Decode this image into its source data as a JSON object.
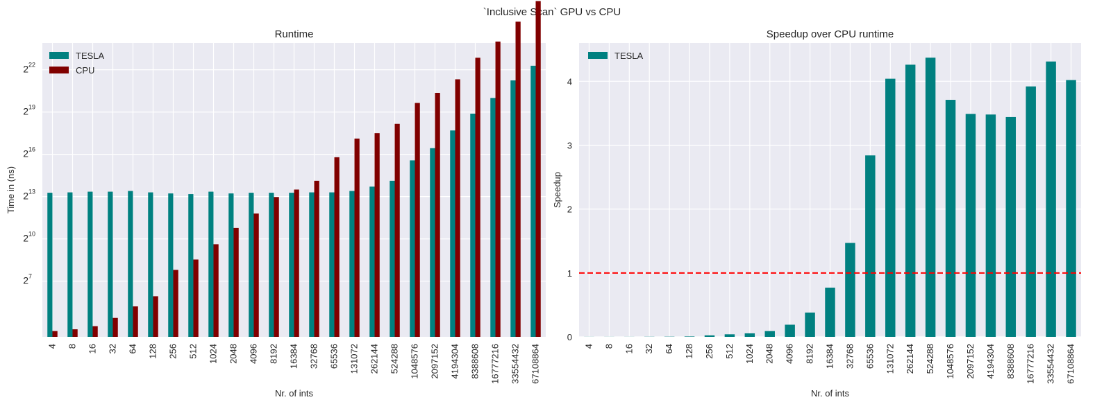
{
  "figure": {
    "suptitle": "`Inclusive Scan` GPU vs CPU"
  },
  "colors": {
    "tesla": "#008080",
    "cpu": "#800000",
    "plot_bg": "#eaeaf2",
    "grid": "#ffffff",
    "ref_line": "#ff0000",
    "text": "#262626"
  },
  "chart_data": [
    {
      "type": "bar",
      "title": "Runtime",
      "xlabel": "Nr. of ints",
      "ylabel": "Time in (ns)",
      "yscale": "log2",
      "ylim_log2": [
        3.05,
        23.9
      ],
      "yticks_exp": [
        7,
        10,
        13,
        16,
        19,
        22
      ],
      "yticks_base": "2",
      "grid": true,
      "legend": "top-left",
      "categories": [
        "4",
        "8",
        "16",
        "32",
        "64",
        "128",
        "256",
        "512",
        "1024",
        "2048",
        "4096",
        "8192",
        "16384",
        "32768",
        "65536",
        "131072",
        "262144",
        "524288",
        "1048576",
        "2097152",
        "4194304",
        "8388608",
        "16777216",
        "33554432",
        "67108864"
      ],
      "series": [
        {
          "name": "TESLA",
          "color": "#008080",
          "values": [
            9902,
            10086,
            10433,
            10433,
            10806,
            10086,
            9575,
            9259,
            10433,
            9575,
            9902,
            9902,
            9902,
            10086,
            10086,
            10806,
            13377,
            17820,
            48664,
            88650,
            211928,
            484058,
            1048576,
            2484668,
            5108800
          ]
        },
        {
          "name": "CPU",
          "color": "#800000",
          "values": [
            11,
            12,
            14,
            21,
            37,
            61,
            223,
            371,
            787,
            1753,
            3564,
            8026,
            11585,
            17820,
            56752,
            142211,
            185363,
            292864,
            819200,
            1345487,
            2621440,
            7568000,
            16777216,
            44620000,
            122880000
          ]
        }
      ]
    },
    {
      "type": "bar",
      "title": "Speedup over CPU runtime",
      "xlabel": "Nr. of ints",
      "ylabel": "Speedup",
      "ylim": [
        0,
        4.6
      ],
      "yticks": [
        0,
        1,
        2,
        3,
        4
      ],
      "grid": true,
      "legend": "top-left",
      "reference_line": {
        "y": 1,
        "style": "dashed",
        "color": "#ff0000"
      },
      "categories": [
        "4",
        "8",
        "16",
        "32",
        "64",
        "128",
        "256",
        "512",
        "1024",
        "2048",
        "4096",
        "8192",
        "16384",
        "32768",
        "65536",
        "131072",
        "262144",
        "524288",
        "1048576",
        "2097152",
        "4194304",
        "8388608",
        "16777216",
        "33554432",
        "67108864"
      ],
      "series": [
        {
          "name": "TESLA",
          "color": "#008080",
          "values": [
            0.001,
            0.001,
            0.001,
            0.002,
            0.003,
            0.006,
            0.023,
            0.04,
            0.055,
            0.09,
            0.19,
            0.38,
            0.77,
            1.47,
            2.84,
            4.04,
            4.26,
            4.37,
            3.71,
            3.49,
            3.48,
            3.44,
            3.92,
            4.31,
            4.02
          ]
        }
      ]
    }
  ]
}
